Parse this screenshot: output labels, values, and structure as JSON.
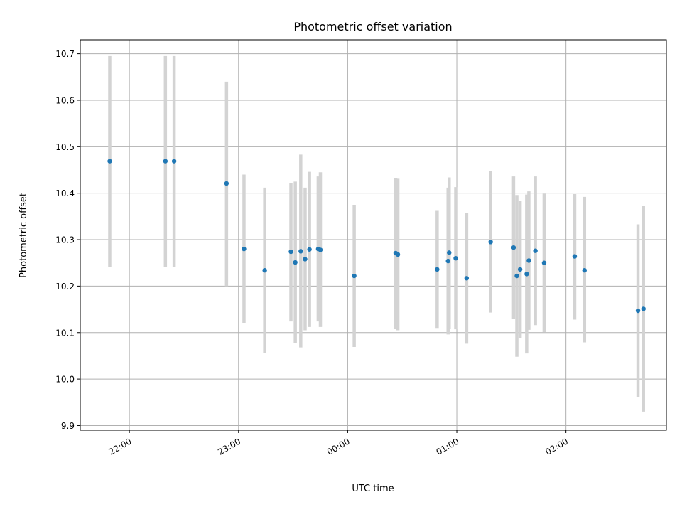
{
  "chart_data": {
    "type": "scatter",
    "title": "Photometric offset variation",
    "xlabel": "UTC time",
    "ylabel": "Photometric offset",
    "x_unit": "hours UTC (values above 24 are after midnight)",
    "xlim": [
      21.55,
      26.92
    ],
    "ylim": [
      9.89,
      10.73
    ],
    "x_ticks": [
      {
        "value": 22,
        "label": "22:00"
      },
      {
        "value": 23,
        "label": "23:00"
      },
      {
        "value": 24,
        "label": "00:00"
      },
      {
        "value": 25,
        "label": "01:00"
      },
      {
        "value": 26,
        "label": "02:00"
      }
    ],
    "y_ticks": [
      {
        "value": 9.9,
        "label": "9.9"
      },
      {
        "value": 10.0,
        "label": "10.0"
      },
      {
        "value": 10.1,
        "label": "10.1"
      },
      {
        "value": 10.2,
        "label": "10.2"
      },
      {
        "value": 10.3,
        "label": "10.3"
      },
      {
        "value": 10.4,
        "label": "10.4"
      },
      {
        "value": 10.5,
        "label": "10.5"
      },
      {
        "value": 10.6,
        "label": "10.6"
      },
      {
        "value": 10.7,
        "label": "10.7"
      }
    ],
    "grid": true,
    "point_color": "#1f77b4",
    "errorbar_color": "#d3d3d3",
    "points": [
      {
        "x": 21.82,
        "y": 10.469,
        "lo": 10.242,
        "hi": 10.695
      },
      {
        "x": 22.33,
        "y": 10.469,
        "lo": 10.242,
        "hi": 10.695
      },
      {
        "x": 22.41,
        "y": 10.469,
        "lo": 10.242,
        "hi": 10.695
      },
      {
        "x": 22.89,
        "y": 10.421,
        "lo": 10.2,
        "hi": 10.64
      },
      {
        "x": 23.05,
        "y": 10.28,
        "lo": 10.121,
        "hi": 10.44
      },
      {
        "x": 23.24,
        "y": 10.234,
        "lo": 10.056,
        "hi": 10.412
      },
      {
        "x": 23.48,
        "y": 10.274,
        "lo": 10.124,
        "hi": 10.422
      },
      {
        "x": 23.52,
        "y": 10.251,
        "lo": 10.077,
        "hi": 10.425
      },
      {
        "x": 23.57,
        "y": 10.275,
        "lo": 10.068,
        "hi": 10.483
      },
      {
        "x": 23.61,
        "y": 10.258,
        "lo": 10.105,
        "hi": 10.412
      },
      {
        "x": 23.65,
        "y": 10.279,
        "lo": 10.112,
        "hi": 10.446
      },
      {
        "x": 23.73,
        "y": 10.28,
        "lo": 10.124,
        "hi": 10.436
      },
      {
        "x": 23.75,
        "y": 10.278,
        "lo": 10.112,
        "hi": 10.445
      },
      {
        "x": 24.06,
        "y": 10.222,
        "lo": 10.069,
        "hi": 10.375
      },
      {
        "x": 24.44,
        "y": 10.271,
        "lo": 10.108,
        "hi": 10.433
      },
      {
        "x": 24.46,
        "y": 10.268,
        "lo": 10.105,
        "hi": 10.431
      },
      {
        "x": 24.82,
        "y": 10.236,
        "lo": 10.11,
        "hi": 10.362
      },
      {
        "x": 24.92,
        "y": 10.254,
        "lo": 10.096,
        "hi": 10.412
      },
      {
        "x": 24.93,
        "y": 10.272,
        "lo": 10.108,
        "hi": 10.434
      },
      {
        "x": 24.99,
        "y": 10.26,
        "lo": 10.107,
        "hi": 10.413
      },
      {
        "x": 25.09,
        "y": 10.217,
        "lo": 10.076,
        "hi": 10.358
      },
      {
        "x": 25.31,
        "y": 10.295,
        "lo": 10.143,
        "hi": 10.448
      },
      {
        "x": 25.52,
        "y": 10.283,
        "lo": 10.13,
        "hi": 10.436
      },
      {
        "x": 25.55,
        "y": 10.222,
        "lo": 10.048,
        "hi": 10.396
      },
      {
        "x": 25.58,
        "y": 10.236,
        "lo": 10.088,
        "hi": 10.384
      },
      {
        "x": 25.64,
        "y": 10.226,
        "lo": 10.055,
        "hi": 10.397
      },
      {
        "x": 25.66,
        "y": 10.255,
        "lo": 10.106,
        "hi": 10.404
      },
      {
        "x": 25.72,
        "y": 10.276,
        "lo": 10.116,
        "hi": 10.436
      },
      {
        "x": 25.8,
        "y": 10.25,
        "lo": 10.101,
        "hi": 10.399
      },
      {
        "x": 26.08,
        "y": 10.264,
        "lo": 10.128,
        "hi": 10.398
      },
      {
        "x": 26.17,
        "y": 10.234,
        "lo": 10.079,
        "hi": 10.392
      },
      {
        "x": 26.66,
        "y": 10.147,
        "lo": 9.962,
        "hi": 10.333
      },
      {
        "x": 26.71,
        "y": 10.151,
        "lo": 9.93,
        "hi": 10.372
      }
    ]
  }
}
